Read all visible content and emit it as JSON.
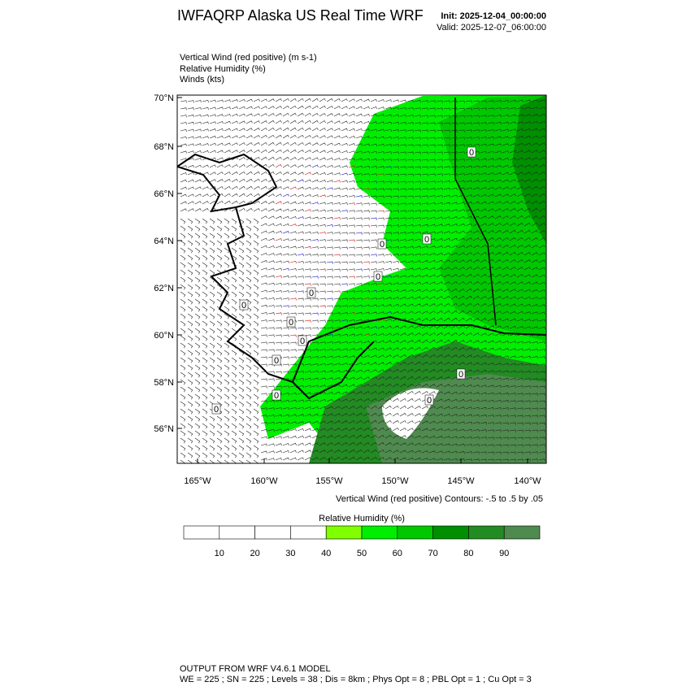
{
  "header": {
    "title": "IWFAQRP Alaska US Real Time WRF",
    "init": "Init: 2025-12-04_00:00:00",
    "valid": "Valid: 2025-12-07_06:00:00"
  },
  "fields": [
    "Vertical Wind (red positive)   (m s-1)",
    "Relative Humidity   (%)",
    "Winds   (kts)"
  ],
  "map": {
    "lat_labels": [
      "70°N",
      "68°N",
      "66°N",
      "64°N",
      "62°N",
      "60°N",
      "58°N",
      "56°N"
    ],
    "lon_labels": [
      "165°W",
      "160°W",
      "155°W",
      "150°W",
      "145°W",
      "140°W"
    ],
    "contour_label": "0",
    "contour_note": "Vertical Wind (red positive) Contours: -.5 to .5 by .05"
  },
  "colorbar": {
    "title": "Relative Humidity  (%)",
    "labels": [
      10,
      20,
      30,
      40,
      50,
      60,
      70,
      80,
      90
    ],
    "colors": [
      "#ffffff",
      "#ffffff",
      "#ffffff",
      "#ffffff",
      "#80ff00",
      "#00ee00",
      "#00c800",
      "#008f00",
      "#228b22",
      "#4f8a4f"
    ]
  },
  "footer": {
    "line1": "OUTPUT FROM WRF V4.6.1 MODEL",
    "line2": "WE = 225 ; SN = 225 ; Levels = 38 ; Dis = 8km ; Phys Opt = 8 ; PBL Opt = 1 ; Cu Opt = 3"
  }
}
